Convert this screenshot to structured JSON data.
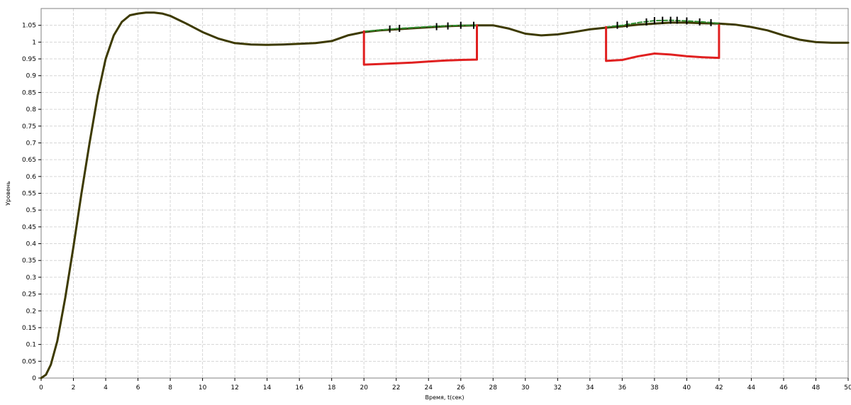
{
  "chart_data": {
    "type": "line",
    "title": "",
    "xlabel": "Время, t(сек)",
    "ylabel": "Уровень",
    "xlim": [
      0,
      50
    ],
    "ylim": [
      0,
      1.1
    ],
    "x_ticks": [
      0,
      2,
      4,
      6,
      8,
      10,
      12,
      14,
      16,
      18,
      20,
      22,
      24,
      26,
      28,
      30,
      32,
      34,
      36,
      38,
      40,
      42,
      44,
      46,
      48,
      50
    ],
    "y_ticks": [
      0,
      0.05,
      0.1,
      0.15,
      0.2,
      0.25,
      0.3,
      0.35,
      0.4,
      0.45,
      0.5,
      0.55,
      0.6,
      0.65,
      0.7,
      0.75,
      0.8,
      0.85,
      0.9,
      0.95,
      1,
      1.05
    ],
    "x_tick_labels": [
      "0",
      "2",
      "4",
      "6",
      "8",
      "10",
      "12",
      "14",
      "16",
      "18",
      "20",
      "22",
      "24",
      "26",
      "28",
      "30",
      "32",
      "34",
      "36",
      "38",
      "40",
      "42",
      "44",
      "46",
      "48",
      "50"
    ],
    "y_tick_labels": [
      "0",
      "0.05",
      "0.1",
      "0.15",
      "0.2",
      "0.25",
      "0.3",
      "0.35",
      "0.4",
      "0.45",
      "0.5",
      "0.55",
      "0.6",
      "0.65",
      "0.7",
      "0.75",
      "0.8",
      "0.85",
      "0.9",
      "0.95",
      "1",
      "1.05"
    ],
    "grid": true,
    "series": [
      {
        "color": "#3d3a00",
        "style": "solid",
        "x": [
          0,
          0.3,
          0.6,
          1,
          1.5,
          2,
          2.5,
          3,
          3.5,
          4,
          4.5,
          5,
          5.5,
          6,
          6.5,
          7,
          7.5,
          8,
          9,
          10,
          11,
          12,
          13,
          14,
          15,
          16,
          17,
          18,
          19,
          20,
          21,
          22,
          23,
          24,
          25,
          26,
          27,
          28,
          29,
          30,
          31,
          32,
          33,
          34,
          35,
          36,
          37,
          38,
          39,
          40,
          41,
          42,
          43,
          44,
          45,
          46,
          47,
          48,
          49,
          50
        ],
        "y": [
          0,
          0.01,
          0.04,
          0.11,
          0.24,
          0.39,
          0.55,
          0.7,
          0.84,
          0.95,
          1.02,
          1.06,
          1.08,
          1.085,
          1.088,
          1.088,
          1.085,
          1.078,
          1.055,
          1.03,
          1.01,
          0.997,
          0.993,
          0.992,
          0.993,
          0.995,
          0.997,
          1.003,
          1.02,
          1.03,
          1.035,
          1.038,
          1.041,
          1.044,
          1.047,
          1.049,
          1.05,
          1.05,
          1.04,
          1.025,
          1.02,
          1.023,
          1.03,
          1.038,
          1.043,
          1.047,
          1.052,
          1.055,
          1.058,
          1.058,
          1.056,
          1.055,
          1.052,
          1.045,
          1.035,
          1.02,
          1.007,
          1,
          0.998,
          0.998
        ]
      },
      {
        "color": "#2e8b2e",
        "style": "dashed",
        "x": [
          20,
          21,
          22,
          23,
          24,
          25,
          26,
          27
        ],
        "y": [
          1.032,
          1.036,
          1.04,
          1.043,
          1.046,
          1.048,
          1.05,
          1.05
        ]
      },
      {
        "color": "#2e8b2e",
        "style": "dashed",
        "x": [
          35,
          36,
          37,
          38,
          39,
          40,
          41,
          42
        ],
        "y": [
          1.045,
          1.05,
          1.058,
          1.064,
          1.065,
          1.063,
          1.06,
          1.056
        ]
      },
      {
        "color": "#e02020",
        "style": "solid",
        "x": [
          20,
          20,
          21,
          22,
          23,
          24,
          25,
          26,
          27,
          27
        ],
        "y": [
          1.032,
          0.933,
          0.935,
          0.937,
          0.939,
          0.942,
          0.945,
          0.947,
          0.948,
          1.05
        ]
      },
      {
        "color": "#e02020",
        "style": "solid",
        "x": [
          35,
          35,
          36,
          37,
          38,
          39,
          40,
          41,
          42,
          42
        ],
        "y": [
          1.045,
          0.944,
          0.947,
          0.958,
          0.966,
          0.963,
          0.958,
          0.955,
          0.953,
          1.05
        ]
      }
    ],
    "markers": {
      "color": "#000000",
      "x": [
        21.6,
        22.2,
        24.5,
        25.2,
        26,
        26.8,
        35.7,
        36.3,
        37.5,
        38,
        38.5,
        39,
        39.4,
        40,
        40.8,
        41.5
      ],
      "y": [
        1.039,
        1.041,
        1.046,
        1.048,
        1.05,
        1.05,
        1.05,
        1.053,
        1.06,
        1.064,
        1.065,
        1.065,
        1.065,
        1.063,
        1.06,
        1.058
      ]
    }
  }
}
